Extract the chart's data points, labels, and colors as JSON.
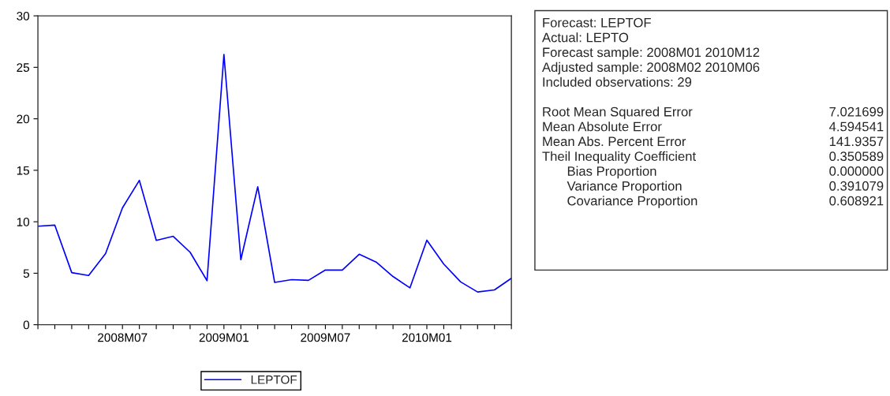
{
  "chart_data": {
    "type": "line",
    "categories": [
      null,
      null,
      null,
      null,
      null,
      "2008M07",
      null,
      null,
      null,
      null,
      null,
      "2009M01",
      null,
      null,
      null,
      null,
      null,
      "2009M07",
      null,
      null,
      null,
      null,
      null,
      "2010M01",
      null,
      null,
      null,
      null,
      null
    ],
    "series": [
      {
        "name": "LEPTOF",
        "color": "#0000ff",
        "values": [
          9.57,
          9.67,
          5.06,
          4.78,
          6.91,
          11.35,
          14.02,
          8.19,
          8.59,
          7.04,
          4.28,
          26.25,
          6.31,
          13.4,
          4.11,
          4.38,
          4.31,
          5.31,
          5.31,
          6.84,
          6.09,
          4.68,
          3.58,
          8.21,
          5.89,
          4.16,
          3.18,
          3.38,
          4.51
        ]
      }
    ],
    "ylim": [
      0,
      30
    ],
    "yticks": [
      0,
      5,
      10,
      15,
      20,
      25,
      30
    ],
    "grid": false,
    "legend": "bottom",
    "marker": "none",
    "line_style": "solid",
    "annotations": [
      "Forecast: LEPTOF",
      "Actual: LEPTO",
      "Forecast sample: 2008M01 2010M12",
      "Adjusted sample: 2008M02 2010M06",
      "Included observations: 29",
      "Root Mean Squared Error",
      "7.021699",
      "Mean Absolute Error",
      "4.594541",
      "Mean Abs. Percent Error",
      "141.9357",
      "Theil Inequality Coefficient",
      "0.350589",
      "Bias Proportion",
      "0.000000",
      "Variance Proportion",
      "0.391079",
      "Covariance Proportion",
      "0.608921"
    ]
  }
}
